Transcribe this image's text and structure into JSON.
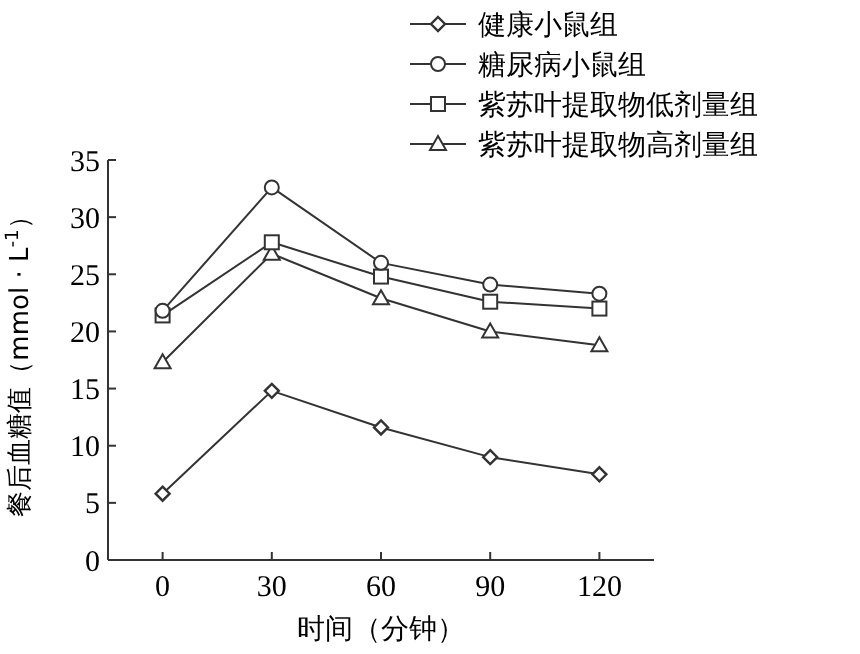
{
  "chart_data": {
    "type": "line",
    "xlabel": "时间（分钟）",
    "ylabel": "餐后血糖值（mmol · L$^{-1}$）",
    "x": [
      0,
      30,
      60,
      90,
      120
    ],
    "xlim": [
      -15,
      135
    ],
    "xticks": [
      0,
      30,
      60,
      90,
      120
    ],
    "ylim": [
      0,
      35
    ],
    "yticks": [
      0,
      5,
      10,
      15,
      20,
      25,
      30,
      35
    ],
    "grid": false,
    "legend": "top right",
    "line_style": "solid",
    "series": [
      {
        "name": "健康小鼠组",
        "color": "#333333",
        "marker": "diamond",
        "values": [
          5.8,
          14.8,
          11.6,
          9.0,
          7.5
        ]
      },
      {
        "name": "糖尿病小鼠组",
        "color": "#333333",
        "marker": "circle",
        "values": [
          21.8,
          32.6,
          26.0,
          24.1,
          23.3
        ]
      },
      {
        "name": "紫苏叶提取物低剂量组",
        "color": "#333333",
        "marker": "square",
        "values": [
          21.4,
          27.8,
          24.8,
          22.6,
          22.0
        ]
      },
      {
        "name": "紫苏叶提取物高剂量组",
        "color": "#333333",
        "marker": "triangle",
        "values": [
          17.3,
          26.8,
          22.9,
          20.0,
          18.8
        ]
      }
    ]
  }
}
